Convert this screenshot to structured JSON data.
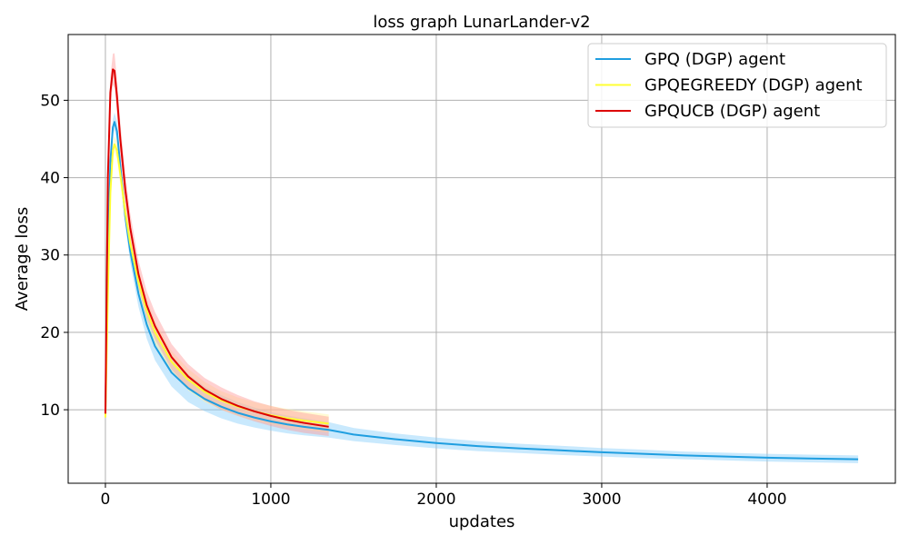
{
  "chart_data": {
    "type": "line",
    "title": "loss graph LunarLander-v2",
    "xlabel": "updates",
    "ylabel": "Average loss",
    "xlim": [
      -225,
      4775
    ],
    "ylim": [
      0.5,
      58.5
    ],
    "xticks": [
      0,
      1000,
      2000,
      3000,
      4000
    ],
    "yticks": [
      10,
      20,
      30,
      40,
      50
    ],
    "grid": true,
    "legend_position": "top-right",
    "series": [
      {
        "name": "GPQ (DGP) agent",
        "color": "#1f9ee0",
        "band_color": "#87cefa",
        "x": [
          0,
          15,
          30,
          45,
          55,
          70,
          90,
          120,
          150,
          200,
          250,
          300,
          400,
          500,
          600,
          700,
          800,
          900,
          1000,
          1100,
          1200,
          1350,
          1500,
          1750,
          2000,
          2250,
          2500,
          2750,
          3000,
          3250,
          3500,
          3750,
          4000,
          4250,
          4550
        ],
        "y": [
          9.5,
          30,
          42,
          46.5,
          47.2,
          46,
          41.5,
          35,
          30.5,
          25,
          21,
          18.2,
          14.8,
          12.8,
          11.4,
          10.4,
          9.6,
          9.0,
          8.5,
          8.1,
          7.8,
          7.4,
          6.8,
          6.2,
          5.7,
          5.3,
          5.0,
          4.75,
          4.5,
          4.3,
          4.1,
          3.95,
          3.8,
          3.7,
          3.6
        ],
        "band_lower": [
          9.0,
          29,
          41,
          45.5,
          46.2,
          44.8,
          40.3,
          33.8,
          29.1,
          23.3,
          19.2,
          16.4,
          13.0,
          11.0,
          9.8,
          8.9,
          8.2,
          7.7,
          7.3,
          6.95,
          6.7,
          6.4,
          5.95,
          5.45,
          5.0,
          4.65,
          4.4,
          4.15,
          3.95,
          3.75,
          3.6,
          3.45,
          3.3,
          3.2,
          3.1
        ],
        "band_upper": [
          10.0,
          31,
          43,
          47.5,
          48.4,
          47.3,
          42.7,
          36.2,
          31.9,
          26.7,
          22.8,
          20.0,
          16.6,
          14.6,
          13.0,
          11.9,
          11.0,
          10.3,
          9.7,
          9.25,
          8.9,
          8.4,
          7.65,
          6.95,
          6.4,
          5.95,
          5.6,
          5.35,
          5.05,
          4.85,
          4.6,
          4.45,
          4.3,
          4.2,
          4.1
        ]
      },
      {
        "name": "GPQEGREEDY (DGP) agent",
        "color": "#ffff33",
        "band_color": "#fff59d",
        "x": [
          0,
          15,
          30,
          45,
          55,
          70,
          90,
          120,
          150,
          200,
          250,
          300,
          400,
          500,
          600,
          700,
          800,
          900,
          1000,
          1100,
          1200,
          1350
        ],
        "y": [
          9.0,
          25,
          38,
          43.5,
          44.3,
          43.5,
          40.5,
          35.5,
          31.5,
          26.5,
          22.8,
          20.0,
          16.2,
          13.9,
          12.3,
          11.2,
          10.4,
          9.8,
          9.3,
          8.9,
          8.6,
          8.2
        ],
        "band_lower": [
          8.6,
          24,
          37,
          42.5,
          43.3,
          42.4,
          39.2,
          34.2,
          30.0,
          25.0,
          21.3,
          18.5,
          14.8,
          12.5,
          11.0,
          10.0,
          9.2,
          8.6,
          8.1,
          7.7,
          7.4,
          7.0
        ],
        "band_upper": [
          9.4,
          26,
          39,
          44.5,
          45.4,
          44.6,
          41.8,
          36.8,
          33.0,
          28.0,
          24.3,
          21.5,
          17.6,
          15.3,
          13.6,
          12.4,
          11.6,
          11.0,
          10.5,
          10.1,
          9.8,
          9.4
        ]
      },
      {
        "name": "GPQUCB (DGP) agent",
        "color": "#dd0000",
        "band_color": "#ff9999",
        "x": [
          0,
          15,
          30,
          45,
          55,
          70,
          90,
          120,
          150,
          200,
          250,
          300,
          400,
          500,
          600,
          700,
          800,
          900,
          1000,
          1100,
          1200,
          1350
        ],
        "y": [
          9.5,
          40,
          51,
          54,
          53.8,
          50.5,
          45,
          38.5,
          33.5,
          27.5,
          23.5,
          20.8,
          16.8,
          14.3,
          12.6,
          11.4,
          10.5,
          9.8,
          9.2,
          8.7,
          8.3,
          7.8
        ],
        "band_lower": [
          9.0,
          38,
          49,
          52,
          51.6,
          48.4,
          42.9,
          36.6,
          31.6,
          25.8,
          21.8,
          19.1,
          15.2,
          12.8,
          11.2,
          10.0,
          9.2,
          8.5,
          7.9,
          7.4,
          7.0,
          6.6
        ],
        "band_upper": [
          10.0,
          42,
          53,
          56,
          56.1,
          52.7,
          47.2,
          40.5,
          35.4,
          29.3,
          25.3,
          22.6,
          18.5,
          15.9,
          14.1,
          12.9,
          11.9,
          11.1,
          10.5,
          10.0,
          9.6,
          9.1
        ]
      }
    ]
  }
}
